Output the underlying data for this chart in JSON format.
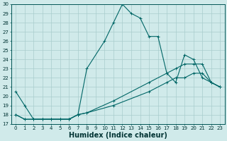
{
  "xlabel": "Humidex (Indice chaleur)",
  "bg_color": "#d0eaea",
  "grid_color": "#a8cccc",
  "line_color": "#006666",
  "ylim": [
    17,
    30
  ],
  "xlim": [
    -0.5,
    23.5
  ],
  "yticks": [
    17,
    18,
    19,
    20,
    21,
    22,
    23,
    24,
    25,
    26,
    27,
    28,
    29,
    30
  ],
  "xticks": [
    0,
    1,
    2,
    3,
    4,
    5,
    6,
    7,
    8,
    9,
    10,
    11,
    12,
    13,
    14,
    15,
    16,
    17,
    18,
    19,
    20,
    21,
    22,
    23
  ],
  "line1_x": [
    0,
    1,
    2,
    3,
    4,
    5,
    6,
    7,
    8,
    10,
    11,
    12,
    13,
    14,
    15,
    16,
    17,
    18,
    19,
    20,
    21,
    22,
    23
  ],
  "line1_y": [
    20.5,
    19.0,
    17.5,
    17.5,
    17.5,
    17.5,
    17.5,
    18.0,
    23.0,
    26.0,
    28.0,
    30.0,
    29.0,
    28.5,
    26.5,
    26.5,
    22.5,
    21.5,
    24.5,
    24.0,
    22.0,
    21.5,
    21.0
  ],
  "line2_x": [
    0,
    1,
    2,
    3,
    4,
    5,
    6,
    7,
    8,
    11,
    15,
    17,
    18,
    19,
    20,
    21,
    22,
    23
  ],
  "line2_y": [
    18.0,
    17.5,
    17.5,
    17.5,
    17.5,
    17.5,
    17.5,
    18.0,
    18.2,
    19.5,
    21.5,
    22.5,
    23.0,
    23.5,
    23.5,
    23.5,
    21.5,
    21.0
  ],
  "line3_x": [
    0,
    1,
    2,
    3,
    4,
    5,
    6,
    7,
    8,
    11,
    15,
    17,
    18,
    19,
    20,
    21,
    22,
    23
  ],
  "line3_y": [
    18.0,
    17.5,
    17.5,
    17.5,
    17.5,
    17.5,
    17.5,
    18.0,
    18.2,
    19.0,
    20.5,
    21.5,
    22.0,
    22.0,
    22.5,
    22.5,
    21.5,
    21.0
  ],
  "marker": "+",
  "markersize": 3,
  "linewidth": 0.8,
  "tick_fontsize": 5,
  "xlabel_fontsize": 7
}
